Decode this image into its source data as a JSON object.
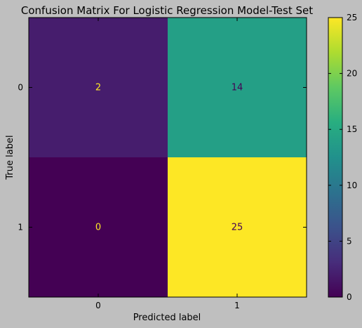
{
  "chart_data": {
    "type": "heatmap",
    "title": "Confusion Matrix For Logistic Regression Model-Test Set",
    "xlabel": "Predicted label",
    "ylabel": "True label",
    "x_categories": [
      "0",
      "1"
    ],
    "y_categories": [
      "0",
      "1"
    ],
    "values": [
      [
        2,
        14
      ],
      [
        0,
        25
      ]
    ],
    "colorbar": {
      "ticks": [
        "0",
        "5",
        "10",
        "15",
        "20",
        "25"
      ],
      "range": [
        0,
        25
      ],
      "colormap": "viridis"
    },
    "cell_text_colors": {
      "light": "#fde725",
      "dark": "#440154"
    },
    "background": "#bfbfbf"
  }
}
